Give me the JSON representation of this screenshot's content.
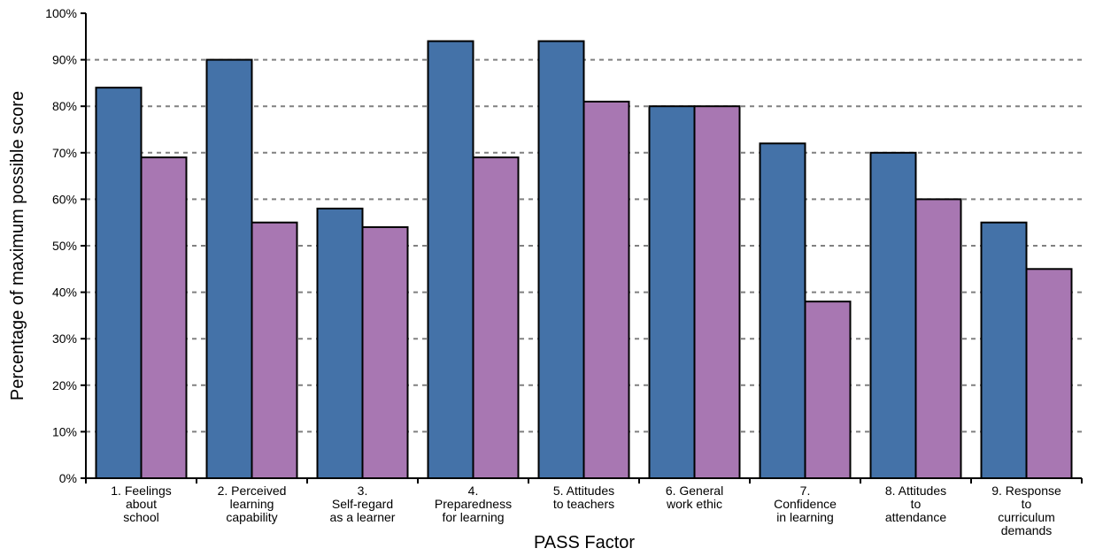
{
  "chart_data": {
    "type": "bar",
    "xlabel": "PASS Factor",
    "ylabel": "Percentage of maximum possible score",
    "ylim": [
      0,
      100
    ],
    "yticks": [
      "0%",
      "10%",
      "20%",
      "30%",
      "40%",
      "50%",
      "60%",
      "70%",
      "80%",
      "90%",
      "100%"
    ],
    "grid": "horizontal dashed",
    "categories": [
      [
        "1. Feelings",
        "about",
        "school"
      ],
      [
        "2. Perceived",
        "learning",
        "capability"
      ],
      [
        "3.",
        "Self-regard",
        "as a learner"
      ],
      [
        "4.",
        "Preparedness",
        "for learning"
      ],
      [
        "5. Attitudes",
        "to teachers"
      ],
      [
        "6. General",
        "work ethic"
      ],
      [
        "7.",
        "Confidence",
        "in learning"
      ],
      [
        "8. Attitudes",
        "to",
        "attendance"
      ],
      [
        "9. Response",
        "to",
        "curriculum",
        "demands"
      ]
    ],
    "series": [
      {
        "color": "#4472a8",
        "values": [
          84,
          90,
          58,
          94,
          94,
          80,
          72,
          70,
          55
        ]
      },
      {
        "color": "#a877b2",
        "values": [
          69,
          55,
          54,
          69,
          81,
          80,
          38,
          60,
          45
        ]
      }
    ]
  }
}
